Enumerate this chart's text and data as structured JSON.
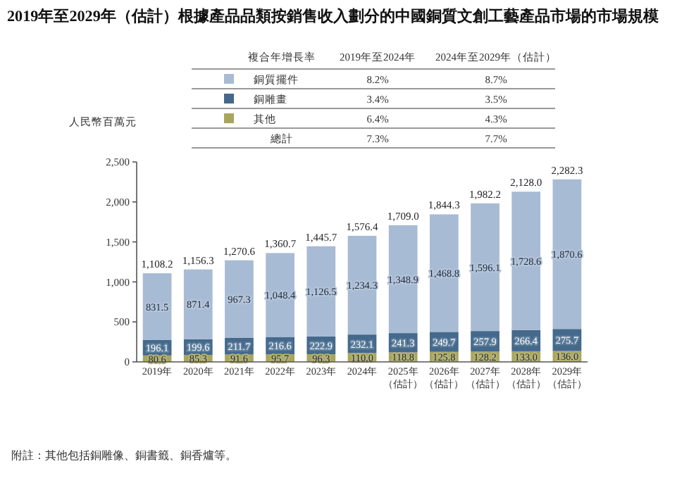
{
  "chart_data": {
    "type": "bar",
    "stacked": true,
    "legend": "top",
    "title": "2019年至2029年（估計）根據產品品類按銷售收入劃分的中國銅質文創工藝產品市場的市場規模",
    "ylabel": "人民幣百萬元",
    "legend_title": "複合年增長率",
    "categories": [
      "2019年",
      "2020年",
      "2021年",
      "2022年",
      "2023年",
      "2024年",
      "2025年（估計）",
      "2026年（估計）",
      "2027年（估計）",
      "2028年（估計）",
      "2029年（估計）"
    ],
    "series": [
      {
        "name": "其他",
        "color": "#a9a65c",
        "values": [
          80.6,
          85.3,
          91.6,
          95.7,
          96.3,
          110.0,
          118.8,
          125.8,
          128.2,
          133.0,
          136.0
        ],
        "value_labels": [
          "80.6",
          "85.3",
          "91.6",
          "95.7",
          "96.3",
          "110.0",
          "118.8",
          "125.8",
          "128.2",
          "133.0",
          "136.0"
        ]
      },
      {
        "name": "銅雕畫",
        "color": "#44698c",
        "values": [
          196.1,
          199.6,
          211.7,
          216.6,
          222.9,
          232.1,
          241.3,
          249.7,
          257.9,
          266.4,
          275.7
        ],
        "value_labels": [
          "196.1",
          "199.6",
          "211.7",
          "216.6",
          "222.9",
          "232.1",
          "241.3",
          "249.7",
          "257.9",
          "266.4",
          "275.7"
        ]
      },
      {
        "name": "銅質擺件",
        "color": "#a8bbd4",
        "values": [
          831.5,
          871.4,
          967.3,
          1048.4,
          1126.5,
          1234.3,
          1348.9,
          1468.8,
          1596.1,
          1728.6,
          1870.6
        ],
        "value_labels": [
          "831.5",
          "871.4",
          "967.3",
          "1,048.4",
          "1,126.5",
          "1,234.3",
          "1,348.9",
          "1,468.8",
          "1,596.1",
          "1,728.6",
          "1,870.6"
        ]
      }
    ],
    "totals": [
      "1,108.2",
      "1,156.3",
      "1,270.6",
      "1,360.7",
      "1,445.7",
      "1,576.4",
      "1,709.0",
      "1,844.3",
      "1,982.2",
      "2,128.0",
      "2,282.3"
    ],
    "ylim": [
      0,
      2500
    ],
    "yticks": [
      0,
      500,
      {
        "value": 1000,
        "label": "1,000"
      },
      {
        "value": 1500,
        "label": "1,500"
      },
      {
        "value": 2000,
        "label": "2,000"
      },
      {
        "value": 2500,
        "label": "2,500"
      }
    ],
    "annotations": [
      "2019年至2024年",
      "2024年至2029年（估計）",
      "8.2%",
      "8.7%",
      "3.4%",
      "3.5%",
      "6.4%",
      "4.3%",
      "總計",
      "7.3%",
      "7.7%",
      "附註：其他包括銅雕像、銅書籤、銅香爐等。"
    ]
  }
}
